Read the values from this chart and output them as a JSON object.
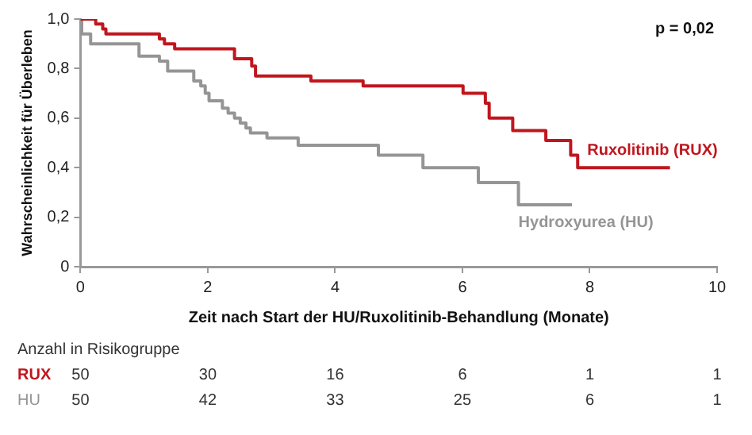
{
  "chart_data": {
    "type": "step",
    "xlabel": "Zeit nach Start der HU/Ruxolitinib-Behandlung (Monate)",
    "ylabel": "Wahrscheinlichkeit für Überleben",
    "xlim": [
      0,
      10
    ],
    "xticks": [
      0,
      2,
      4,
      6,
      8,
      10
    ],
    "ylim": [
      0,
      1
    ],
    "yticks": [
      0,
      {
        "value": 0.2,
        "label": "0,2"
      },
      {
        "value": 0.4,
        "label": "0,4"
      },
      {
        "value": 0.6,
        "label": "0,6"
      },
      {
        "value": 0.8,
        "label": "0,8"
      },
      {
        "value": 1,
        "label": "1,0"
      }
    ],
    "grid": false,
    "legend": false,
    "marker": "none",
    "line_style": "solid",
    "series": [
      {
        "name": "Ruxolitinib (RUX)",
        "color": "#c0161e",
        "x": [
          0,
          0.24,
          0.35,
          0.4,
          1.24,
          1.32,
          1.48,
          2.42,
          2.69,
          2.75,
          3.62,
          4.44,
          6.01,
          6.36,
          6.42,
          6.79,
          7.31,
          7.7,
          7.81,
          9.26
        ],
        "values": [
          1,
          0.98,
          0.96,
          0.94,
          0.92,
          0.9,
          0.88,
          0.84,
          0.81,
          0.77,
          0.75,
          0.73,
          0.7,
          0.66,
          0.6,
          0.55,
          0.51,
          0.45,
          0.4,
          0.4
        ]
      },
      {
        "name": "Hydroxyurea (HU)",
        "color": "#959595",
        "x": [
          0,
          0.02,
          0.16,
          0.92,
          1.24,
          1.37,
          1.78,
          1.89,
          1.96,
          2.02,
          2.23,
          2.32,
          2.42,
          2.51,
          2.6,
          2.67,
          2.93,
          3.42,
          4.68,
          5.38,
          6.25,
          6.88,
          7.72
        ],
        "values": [
          1,
          0.94,
          0.9,
          0.85,
          0.83,
          0.79,
          0.75,
          0.73,
          0.7,
          0.67,
          0.64,
          0.62,
          0.6,
          0.58,
          0.56,
          0.54,
          0.52,
          0.49,
          0.45,
          0.4,
          0.34,
          0.25,
          0.25
        ]
      }
    ],
    "annotations": [
      "p = 0,02",
      "Anzahl in Risikogruppe",
      "RUX",
      "50",
      "30",
      "16",
      "6",
      "1",
      "1",
      "HU",
      "50",
      "42",
      "33",
      "25",
      "6",
      "1"
    ]
  }
}
